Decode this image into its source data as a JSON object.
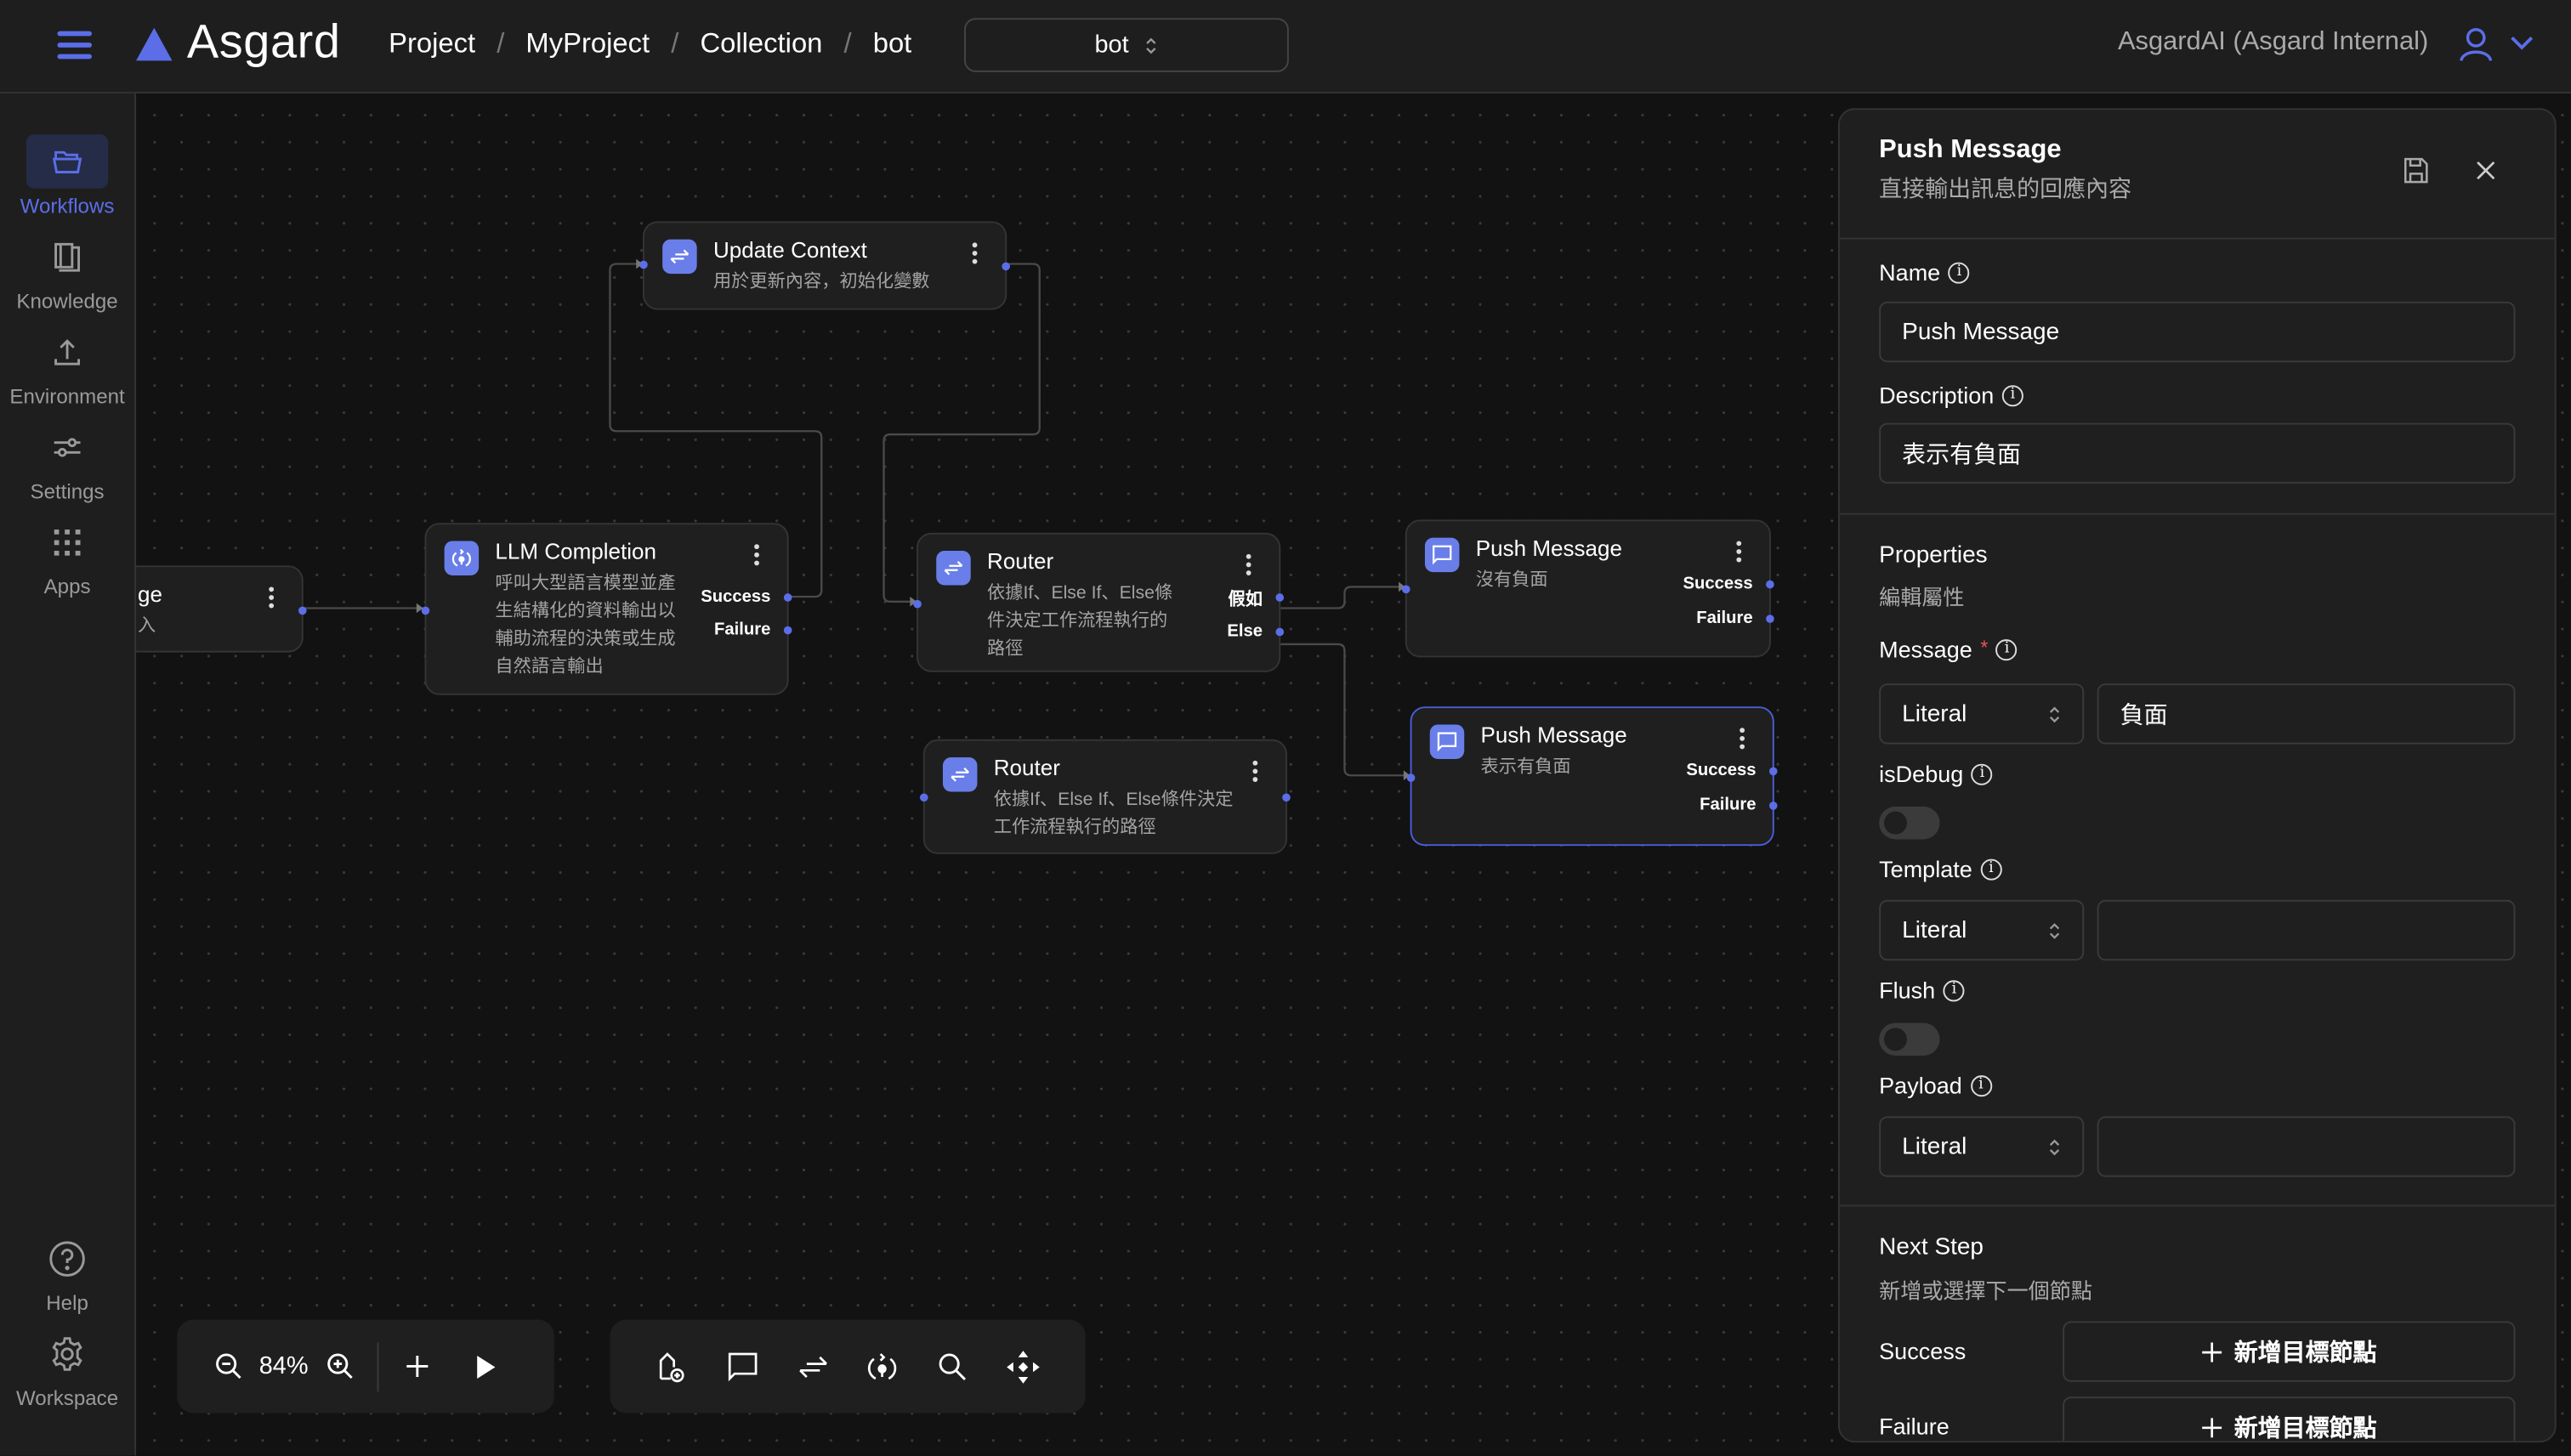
{
  "header": {
    "app_name": "Asgard",
    "breadcrumbs": [
      "Project",
      "MyProject",
      "Collection",
      "bot"
    ],
    "breadcrumb_separator": "/",
    "bot_select": {
      "value": "bot"
    },
    "organization": "AsgardAI (Asgard Internal)",
    "icons": [
      "menu-icon",
      "user-icon",
      "chevron-down-icon"
    ],
    "accent_color": "#5b6ee8"
  },
  "sidebar": {
    "items": [
      {
        "label": "Workflows",
        "icon": "folder-open-icon",
        "active": true
      },
      {
        "label": "Knowledge",
        "icon": "book-icon",
        "active": false
      },
      {
        "label": "Environment",
        "icon": "upload-icon",
        "active": false
      },
      {
        "label": "Settings",
        "icon": "sliders-icon",
        "active": false
      },
      {
        "label": "Apps",
        "icon": "grid-icon",
        "active": false
      }
    ],
    "bottom_items": [
      {
        "label": "Help",
        "icon": "help-circle-icon"
      },
      {
        "label": "Workspace",
        "icon": "gear-icon"
      }
    ]
  },
  "canvas": {
    "nodes": [
      {
        "title": "ge",
        "description": "入",
        "icon": "chat-bubble-icon",
        "outputs": [],
        "selected": false
      },
      {
        "title": "Update Context",
        "description": "用於更新內容，初始化變數",
        "icon": "swap-arrows-icon",
        "outputs": [],
        "selected": false
      },
      {
        "title": "LLM Completion",
        "description": "呼叫大型語言模型並產生結構化的資料輸出以輔助流程的決策或生成自然語言輸出",
        "icon": "llm-icon",
        "outputs": [
          "Success",
          "Failure"
        ],
        "selected": false
      },
      {
        "title": "Router",
        "description": "依據If、Else If、Else條件決定工作流程執行的路徑",
        "icon": "swap-arrows-icon",
        "outputs": [
          "假如",
          "Else"
        ],
        "selected": false
      },
      {
        "title": "Router",
        "description": "依據If、Else If、Else條件決定工作流程執行的路徑",
        "icon": "swap-arrows-icon",
        "outputs": [],
        "selected": false
      },
      {
        "title": "Push Message",
        "description": "沒有負面",
        "icon": "chat-bubble-icon",
        "outputs": [
          "Success",
          "Failure"
        ],
        "selected": false
      },
      {
        "title": "Push Message",
        "description": "表示有負面",
        "icon": "chat-bubble-icon",
        "outputs": [
          "Success",
          "Failure"
        ],
        "selected": true
      }
    ],
    "zoom_level": "84%",
    "zoom_toolbar": [
      "zoom-out-icon",
      "zoom-in-icon",
      "plus-icon",
      "play-icon"
    ],
    "node_toolbar": [
      "add-node-icon",
      "chat-bubble-icon",
      "swap-arrows-icon",
      "llm-icon",
      "search-icon",
      "move-icon"
    ]
  },
  "panel": {
    "title": "Push Message",
    "subtitle": "直接輸出訊息的回應內容",
    "name_label": "Name",
    "name_value": "Push Message",
    "description_label": "Description",
    "description_value": "表示有負面",
    "properties_title": "Properties",
    "properties_subtitle": "編輯屬性",
    "message_label": "Message",
    "required_mark": "*",
    "message_type": "Literal",
    "message_value": "負面",
    "isdebug_label": "isDebug",
    "isdebug_on": false,
    "template_label": "Template",
    "template_type": "Literal",
    "template_value": "",
    "flush_label": "Flush",
    "flush_on": false,
    "payload_label": "Payload",
    "payload_type": "Literal",
    "payload_value": "",
    "next_step_title": "Next Step",
    "next_step_subtitle": "新增或選擇下一個節點",
    "success_label": "Success",
    "failure_label": "Failure",
    "add_target_label": "新增目標節點"
  }
}
